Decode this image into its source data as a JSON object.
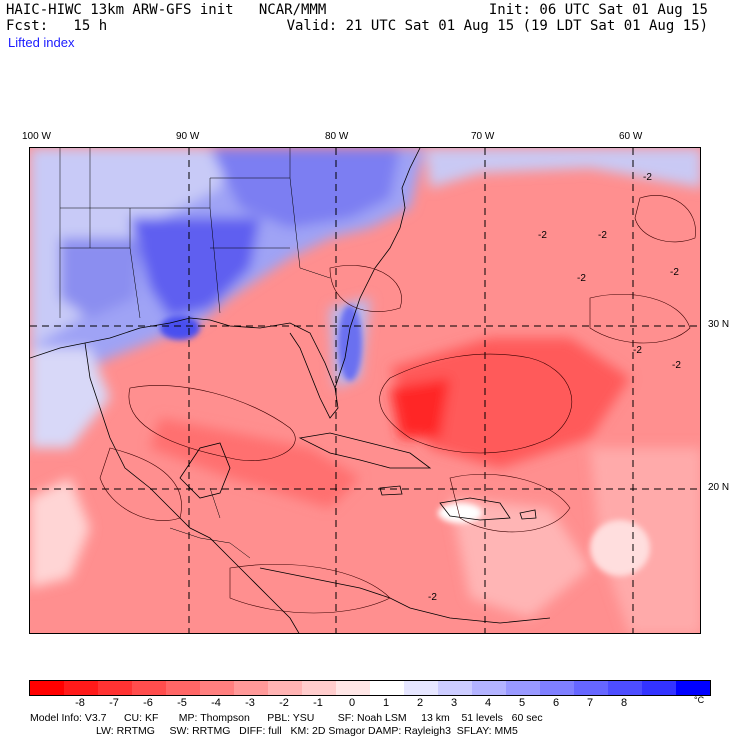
{
  "header": {
    "line1_left": "HAIC-HIWC 13km ARW-GFS init   NCAR/MMM",
    "line1_right": "Init: 06 UTC Sat 01 Aug 15",
    "line2_left": "Fcst:   15 h",
    "line2_right": "Valid: 21 UTC Sat 01 Aug 15 (19 LDT Sat 01 Aug 15)"
  },
  "field_title": "Lifted index",
  "longitude_labels": [
    "100 W",
    "90 W",
    "80 W",
    "70 W",
    "60 W"
  ],
  "latitude_labels": [
    "30 N",
    "20 N"
  ],
  "contour_labels": [
    "-2",
    "-2",
    "-2",
    "-2",
    "-2",
    "-2",
    "-2",
    "-2"
  ],
  "colorbar": {
    "ticks": [
      "-8",
      "-7",
      "-6",
      "-5",
      "-4",
      "-3",
      "-2",
      "-1",
      "0",
      "1",
      "2",
      "3",
      "4",
      "5",
      "6",
      "7",
      "8"
    ],
    "unit": "°C",
    "colors": [
      "#ff0000",
      "#ff1a1a",
      "#ff3333",
      "#ff4d4d",
      "#ff6666",
      "#ff7f7f",
      "#ff9999",
      "#ffb3b3",
      "#ffcccc",
      "#ffe6e6",
      "#ffffff",
      "#e6e6ff",
      "#ccccff",
      "#b3b3ff",
      "#9999ff",
      "#7f7fff",
      "#6666ff",
      "#4d4dff",
      "#3333ff",
      "#0000ff"
    ]
  },
  "footer": {
    "line1": "Model Info: V3.7      CU: KF       MP: Thompson      PBL: YSU        SF: Noah LSM     13 km    51 levels   60 sec",
    "line2": "LW: RRTMG     SW: RRTMG   DIFF: full   KM: 2D Smagor DAMP: Rayleigh3  SFLAY: MM5"
  }
}
